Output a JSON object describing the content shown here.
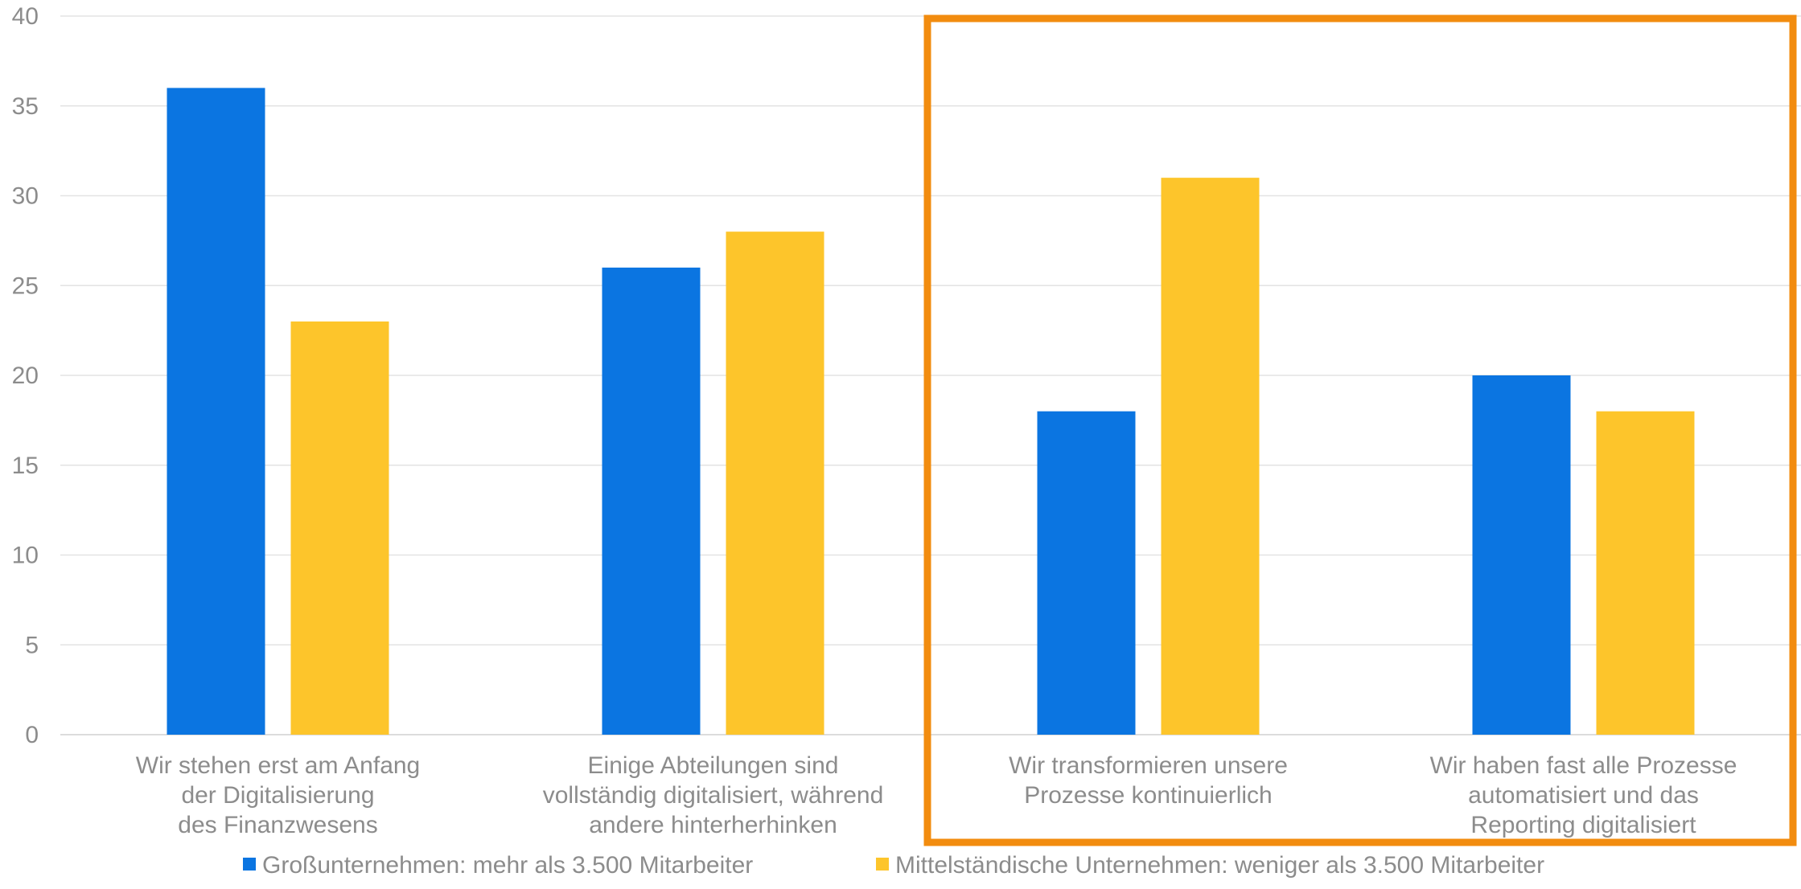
{
  "chart_data": {
    "type": "bar",
    "title": "",
    "xlabel": "",
    "ylabel": "",
    "ylim": [
      0,
      40
    ],
    "yticks": [
      0,
      5,
      10,
      15,
      20,
      25,
      30,
      35,
      40
    ],
    "grid": true,
    "legend_position": "bottom",
    "categories": [
      [
        "Wir stehen erst am Anfang",
        "der Digitalisierung",
        "des Finanzwesens"
      ],
      [
        "Einige Abteilungen sind",
        "vollständig digitalisiert, während",
        "andere hinterherhinken"
      ],
      [
        "Wir transformieren unsere",
        "Prozesse kontinuierlich"
      ],
      [
        "Wir haben fast alle Prozesse",
        "automatisiert und das",
        "Reporting digitalisiert"
      ]
    ],
    "series": [
      {
        "name": "Großunternehmen: mehr als 3.500 Mitarbeiter",
        "color": "#0b75e1",
        "values": [
          36,
          26,
          18,
          20
        ]
      },
      {
        "name": "Mittelständische Unternehmen: weniger als 3.500 Mitarbeiter",
        "color": "#fdc52b",
        "values": [
          23,
          28,
          31,
          18
        ]
      }
    ],
    "highlight": {
      "categories": [
        2,
        3
      ],
      "color": "#f28c0f"
    }
  }
}
